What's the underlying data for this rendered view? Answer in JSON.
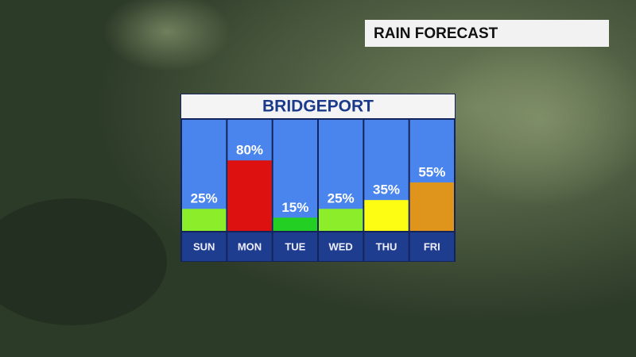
{
  "header": {
    "title": "RAIN FORECAST"
  },
  "chart_data": {
    "type": "bar",
    "title": "BRIDGEPORT",
    "categories": [
      "SUN",
      "MON",
      "TUE",
      "WED",
      "THU",
      "FRI"
    ],
    "values": [
      25,
      80,
      15,
      25,
      35,
      55
    ],
    "value_labels": [
      "25%",
      "80%",
      "15%",
      "25%",
      "35%",
      "55%"
    ],
    "colors": [
      "#8cee2a",
      "#de1111",
      "#22cf22",
      "#8cee2a",
      "#fdfd14",
      "#df951c"
    ]
  }
}
